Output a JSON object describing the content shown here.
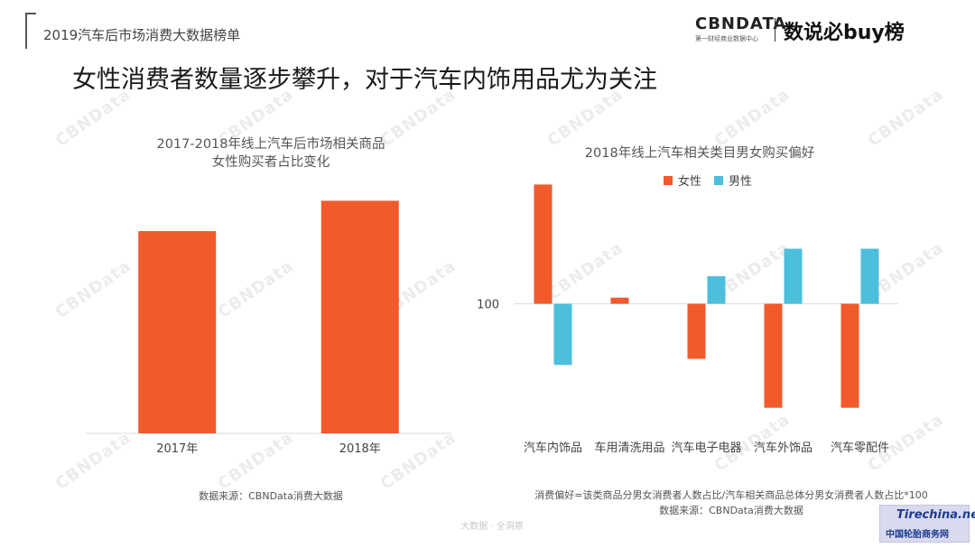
{
  "header": {
    "report_title": "2019汽车后市场消费大数据榜单",
    "brand_name": "CBNDATA",
    "brand_sub": "第一财经商业数据中心",
    "brand_secondary": "数说必buy榜"
  },
  "headline": "女性消费者数量逐步攀升，对于汽车内饰用品尤为关注",
  "watermark_text": "CBNData",
  "colors": {
    "female": "#f15a2b",
    "male": "#4bbfdc",
    "axis": "#dddddd",
    "watermark": "#ececec"
  },
  "chart_data": [
    {
      "type": "bar",
      "title": "2017-2018年线上汽车后市场相关商品\n女性购买者占比变化",
      "title_lines": [
        "2017-2018年线上汽车后市场相关商品",
        "女性购买者占比变化"
      ],
      "categories": [
        "2017年",
        "2018年"
      ],
      "values": [
        80,
        92
      ],
      "ylim": [
        0,
        100
      ],
      "xlabel": "",
      "ylabel": "",
      "source": "数据来源：CBNData消费大数据"
    },
    {
      "type": "bar",
      "title": "2018年线上汽车相关类目男女购买偏好",
      "categories": [
        "汽车内饰品",
        "车用清洗用品",
        "汽车电子电器",
        "汽车外饰品",
        "汽车零配件"
      ],
      "baseline": 100,
      "baseline_label": "100",
      "ylim": [
        60,
        140
      ],
      "series": [
        {
          "name": "女性",
          "values": [
            139,
            102,
            82,
            66,
            66
          ]
        },
        {
          "name": "男性",
          "values": [
            80,
            100,
            109,
            118,
            118
          ]
        }
      ],
      "note": "消费偏好=该类商品分男女消费者人数占比/汽车相关商品总体分男女消费者人数占比*100",
      "source": "数据来源：CBNData消费大数据"
    }
  ],
  "footer_text": "大数据 · 全洞察",
  "corner_badge": {
    "line1": "Tirechina.net",
    "line2": "中国轮胎商务网"
  }
}
